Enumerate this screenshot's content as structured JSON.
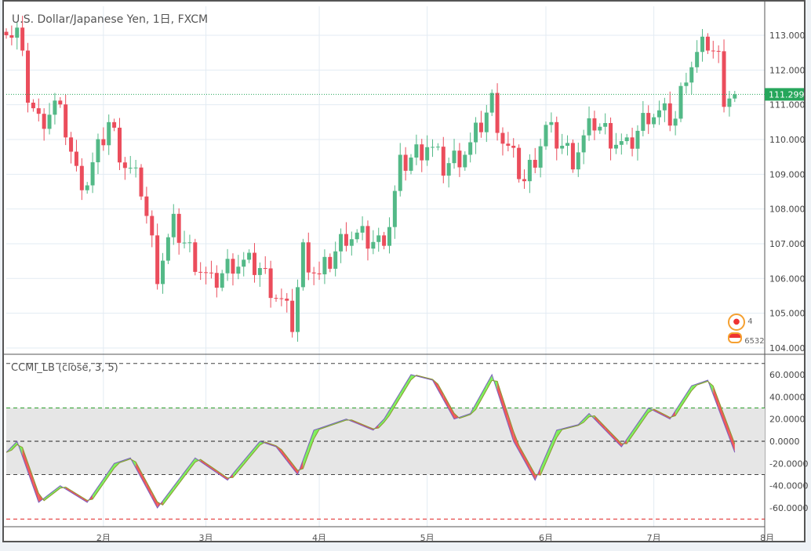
{
  "header": {
    "title": "U.S. Dollar/Japanese Yen, 1日, FXCM"
  },
  "indicator": {
    "title": "CCMI_LB (close, 3, 5)"
  },
  "current_price": {
    "label": "111.299",
    "value": 111.299,
    "color": "#26a65b"
  },
  "colors": {
    "up": "#53b987",
    "down": "#eb4d5c",
    "fill_up": "#7ef05a",
    "fill_down": "#f0595a"
  },
  "badges": {
    "count": "4",
    "code": "6532"
  },
  "chart_data": [
    {
      "type": "candlestick",
      "title": "U.S. Dollar/Japanese Yen, 1日, FXCM",
      "ylim": [
        103.8,
        113.8
      ],
      "yticks": [
        "113.000",
        "112.000",
        "111.000",
        "110.000",
        "109.000",
        "108.000",
        "107.000",
        "106.000",
        "105.000",
        "104.000"
      ],
      "ytick_values": [
        113,
        112,
        111,
        110,
        109,
        108,
        107,
        106,
        105,
        104
      ],
      "xticks": [
        "2月",
        "3月",
        "4月",
        "5月",
        "6月",
        "7月",
        "8月"
      ],
      "xtick_index": [
        18,
        37,
        58,
        78,
        100,
        120,
        141
      ],
      "n_bars": 136,
      "close_keypoints": [
        [
          0,
          113.0
        ],
        [
          2,
          113.1
        ],
        [
          4,
          111.3
        ],
        [
          6,
          110.5
        ],
        [
          9,
          111.0
        ],
        [
          11,
          110.3
        ],
        [
          13,
          109.0
        ],
        [
          15,
          108.8
        ],
        [
          19,
          110.5
        ],
        [
          22,
          109.3
        ],
        [
          25,
          108.6
        ],
        [
          28,
          106.2
        ],
        [
          31,
          107.5
        ],
        [
          34,
          106.8
        ],
        [
          38,
          105.8
        ],
        [
          42,
          106.5
        ],
        [
          47,
          106.3
        ],
        [
          51,
          105.3
        ],
        [
          53,
          104.7
        ],
        [
          55,
          106.8
        ],
        [
          58,
          106.0
        ],
        [
          63,
          107.3
        ],
        [
          69,
          107.0
        ],
        [
          71,
          107.6
        ],
        [
          73,
          109.2
        ],
        [
          78,
          109.9
        ],
        [
          81,
          109.2
        ],
        [
          86,
          109.8
        ],
        [
          90,
          111.1
        ],
        [
          92,
          110.0
        ],
        [
          96,
          108.8
        ],
        [
          100,
          110.3
        ],
        [
          105,
          109.5
        ],
        [
          109,
          110.5
        ],
        [
          115,
          109.7
        ],
        [
          119,
          110.8
        ],
        [
          124,
          110.6
        ],
        [
          126,
          112.0
        ],
        [
          130,
          112.8
        ],
        [
          132,
          112.3
        ],
        [
          133,
          111.3
        ],
        [
          135,
          111.299
        ]
      ]
    },
    {
      "type": "line",
      "title": "CCMI_LB (close, 3, 5)",
      "ylim": [
        -75,
        75
      ],
      "yticks": [
        "60.0000",
        "40.0000",
        "20.0000",
        "0.0000",
        "-20.0000",
        "-40.0000",
        "-60.0000"
      ],
      "ytick_values": [
        60,
        40,
        20,
        0,
        -20,
        -40,
        -60
      ],
      "levels": [
        {
          "value": 70,
          "color": "#444"
        },
        {
          "value": 30,
          "color": "#2a9d2a"
        },
        {
          "value": 0,
          "color": "#222"
        },
        {
          "value": -30,
          "color": "#444"
        },
        {
          "value": -70,
          "color": "#e02020"
        }
      ],
      "keypoints": [
        [
          0,
          -10
        ],
        [
          2,
          0
        ],
        [
          6,
          -55
        ],
        [
          10,
          -40
        ],
        [
          15,
          -55
        ],
        [
          20,
          -20
        ],
        [
          23,
          -15
        ],
        [
          28,
          -60
        ],
        [
          35,
          -15
        ],
        [
          41,
          -35
        ],
        [
          47,
          0
        ],
        [
          50,
          -5
        ],
        [
          54,
          -30
        ],
        [
          57,
          10
        ],
        [
          63,
          20
        ],
        [
          68,
          10
        ],
        [
          70,
          20
        ],
        [
          75,
          60
        ],
        [
          79,
          55
        ],
        [
          83,
          20
        ],
        [
          86,
          25
        ],
        [
          90,
          60
        ],
        [
          94,
          0
        ],
        [
          98,
          -35
        ],
        [
          102,
          10
        ],
        [
          106,
          15
        ],
        [
          108,
          25
        ],
        [
          114,
          -5
        ],
        [
          119,
          30
        ],
        [
          123,
          20
        ],
        [
          127,
          50
        ],
        [
          130,
          55
        ],
        [
          135,
          -10
        ]
      ]
    }
  ]
}
